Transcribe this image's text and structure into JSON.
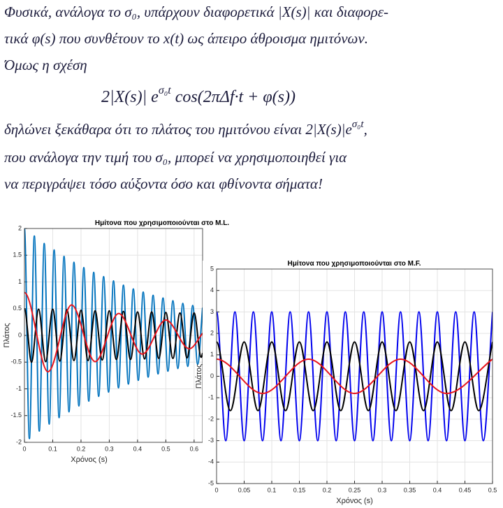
{
  "notes": {
    "lines": [
      "Φυσικά, ανάλογα το σ₀, υπάρχουν διαφορετικά |X(s)| και διαφορε-",
      "τικά φ(s) που συνθέτουν το x(t) ως άπειρο άθροισμα ημιτόνων.",
      "Όμως η σχέση"
    ],
    "equation": {
      "main": "2|X(s)| e",
      "sup": "σ₀t",
      "rest": " cos(2πΔf·t + φ(s))"
    },
    "amplitude_line": {
      "text": "δηλώνει ξεκάθαρα ότι το πλάτος του ημιτόνου είναι 2|X(s)|e",
      "sup": "σ₀t",
      "end": ","
    },
    "closing_lines": [
      "που ανάλογα την τιμή του σ₀, μπορεί να χρησιμοποιηθεί για",
      "να περιγράψει τόσο αύξοντα όσο και φθίνοντα σήματα!"
    ]
  },
  "chart_data": [
    {
      "type": "line",
      "title": "Ημίτονα που χρησιμοποιούνται στο M.L.",
      "x_label": "Χρόνος (s)",
      "y_label": "Πλάτος",
      "xlim": [
        0,
        0.63
      ],
      "xticks": [
        0,
        0.1,
        0.2,
        0.3,
        0.4,
        0.5,
        0.6
      ],
      "ylim": [
        -2,
        2
      ],
      "yticks": [
        -2,
        -1.5,
        -1,
        -0.5,
        0,
        0.5,
        1,
        1.5,
        2
      ],
      "grid": true,
      "series": [
        {
          "color": "#0072bd",
          "x": [
            0,
            0.0175,
            0.035,
            0.0525,
            0.07,
            0.0875,
            0.105,
            0.1225,
            0.14,
            0.1575,
            0.175,
            0.1925,
            0.21,
            0.2275,
            0.245,
            0.2625,
            0.28,
            0.2975,
            0.315,
            0.3325,
            0.35,
            0.3675,
            0.385,
            0.4025,
            0.42,
            0.4375,
            0.455,
            0.4725,
            0.49,
            0.5075,
            0.525,
            0.5425,
            0.56,
            0.5775,
            0.595,
            0.6125,
            0.63
          ],
          "values": [
            2,
            -1.93,
            1.86,
            -1.79,
            1.72,
            -1.66,
            1.6,
            -1.54,
            1.48,
            -1.43,
            1.37,
            -1.32,
            1.27,
            -1.23,
            1.18,
            -1.14,
            1.1,
            -1.06,
            1.02,
            -0.98,
            0.94,
            -0.91,
            0.87,
            -0.84,
            0.81,
            -0.78,
            0.75,
            -0.72,
            0.7,
            -0.67,
            0.65,
            -0.62,
            0.6,
            -0.58,
            0.56,
            -0.54,
            0.52
          ]
        },
        {
          "color": "#000000",
          "x": [
            0,
            0.025,
            0.05,
            0.075,
            0.1,
            0.125,
            0.15,
            0.175,
            0.2,
            0.225,
            0.25,
            0.275,
            0.3,
            0.325,
            0.35,
            0.375,
            0.4,
            0.425,
            0.45,
            0.475,
            0.5,
            0.525,
            0.55,
            0.575,
            0.6,
            0.625,
            0.63
          ],
          "values": [
            0.5,
            -0.5,
            0.49,
            -0.49,
            0.49,
            -0.48,
            0.48,
            -0.47,
            0.47,
            -0.47,
            0.46,
            -0.46,
            0.46,
            -0.45,
            0.45,
            -0.45,
            0.44,
            -0.44,
            0.44,
            -0.43,
            0.43,
            -0.43,
            0.42,
            -0.42,
            0.42,
            -0.41,
            -0.33
          ]
        },
        {
          "color": "#e8141c",
          "x": [
            0,
            0.0833,
            0.1667,
            0.25,
            0.3333,
            0.4167,
            0.5,
            0.5833,
            0.63
          ],
          "values": [
            0.8,
            -0.68,
            0.57,
            -0.49,
            0.41,
            -0.35,
            0.29,
            -0.25,
            0.04
          ]
        }
      ]
    },
    {
      "type": "line",
      "title": "Ημίτονα που χρησιμοποιούνται στο M.F.",
      "x_label": "Χρόνος (s)",
      "y_label": "Πλάτος",
      "xlim": [
        0,
        0.5
      ],
      "xticks": [
        0,
        0.05,
        0.1,
        0.15,
        0.2,
        0.25,
        0.3,
        0.35,
        0.4,
        0.45,
        0.5
      ],
      "ylim": [
        -5,
        5
      ],
      "yticks": [
        -5,
        -4,
        -3,
        -2,
        -1,
        0,
        1,
        2,
        3,
        4,
        5
      ],
      "grid": true,
      "series": [
        {
          "color": "#0000ee",
          "x": [
            0,
            0.0167,
            0.0333,
            0.05,
            0.0667,
            0.0833,
            0.1,
            0.1167,
            0.1333,
            0.15,
            0.1667,
            0.1833,
            0.2,
            0.2167,
            0.2333,
            0.25,
            0.2667,
            0.2833,
            0.3,
            0.3167,
            0.3333,
            0.35,
            0.3667,
            0.3833,
            0.4,
            0.4167,
            0.4333,
            0.45,
            0.4667,
            0.4833,
            0.5
          ],
          "values": [
            3,
            -3,
            3,
            -3,
            3,
            -3,
            3,
            -3,
            3,
            -3,
            3,
            -3,
            3,
            -3,
            3,
            -3,
            3,
            -3,
            3,
            -3,
            3,
            -3,
            3,
            -3,
            3,
            -3,
            3,
            -3,
            3,
            -3,
            3
          ]
        },
        {
          "color": "#000000",
          "x": [
            0,
            0.025,
            0.05,
            0.075,
            0.1,
            0.125,
            0.15,
            0.175,
            0.2,
            0.225,
            0.25,
            0.275,
            0.3,
            0.325,
            0.35,
            0.375,
            0.4,
            0.425,
            0.45,
            0.475,
            0.5
          ],
          "values": [
            1.6,
            -1.6,
            1.6,
            -1.6,
            1.6,
            -1.6,
            1.6,
            -1.6,
            1.6,
            -1.6,
            1.6,
            -1.6,
            1.6,
            -1.6,
            1.6,
            -1.6,
            1.6,
            -1.6,
            1.6,
            -1.6,
            1.6
          ]
        },
        {
          "color": "#e8141c",
          "x": [
            0,
            0.0833,
            0.1667,
            0.25,
            0.3333,
            0.4167,
            0.5
          ],
          "values": [
            0.8,
            -0.8,
            0.8,
            -0.8,
            0.8,
            -0.8,
            0.8
          ]
        }
      ]
    }
  ]
}
